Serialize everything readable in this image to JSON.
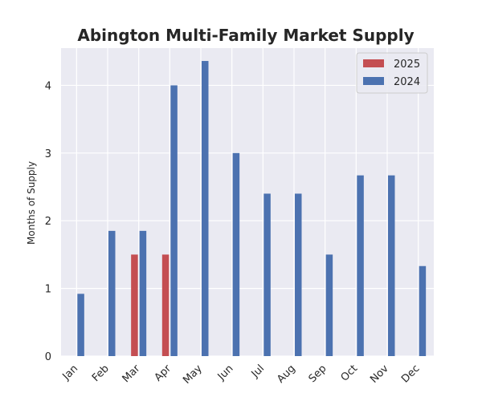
{
  "chart_data": {
    "type": "bar",
    "title": "Abington Multi-Family Market Supply",
    "xlabel": "",
    "ylabel": "Months of Supply",
    "categories": [
      "Jan",
      "Feb",
      "Mar",
      "Apr",
      "May",
      "Jun",
      "Jul",
      "Aug",
      "Sep",
      "Oct",
      "Nov",
      "Dec"
    ],
    "series": [
      {
        "name": "2025",
        "color": "#c44e52",
        "values": [
          0,
          0,
          1.5,
          1.5,
          null,
          null,
          null,
          null,
          null,
          null,
          null,
          null
        ]
      },
      {
        "name": "2024",
        "color": "#4c72b0",
        "values": [
          0.92,
          1.85,
          1.85,
          4.0,
          4.36,
          3.0,
          2.4,
          2.4,
          1.5,
          2.67,
          2.67,
          1.33
        ]
      }
    ],
    "ylim": [
      0,
      4.55
    ],
    "yticks": [
      0,
      1,
      2,
      3,
      4
    ],
    "grid": true,
    "legend": "top-right",
    "plot_background": "#eaeaf2"
  }
}
